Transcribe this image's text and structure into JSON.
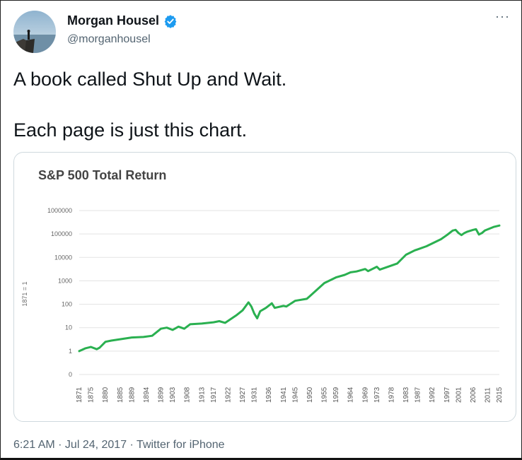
{
  "author": {
    "name": "Morgan Housel",
    "handle": "@morganhousel",
    "verified": true,
    "avatar_icon": "avatar-photo",
    "verified_icon": "verified-badge-icon",
    "more_icon": "more-options-icon",
    "verified_color": "#1d9bf0"
  },
  "tweet": {
    "lines": [
      "A book called Shut Up and Wait.",
      "Each page is just this chart."
    ]
  },
  "footer": {
    "time": "6:21 AM",
    "separator": " · ",
    "date": "Jul 24, 2017",
    "source": "Twitter for iPhone"
  },
  "chart_data": {
    "type": "line",
    "title": "S&P 500 Total Return",
    "ylabel": "1871 = 1",
    "xlabel": "",
    "yscale": "log",
    "grid": true,
    "y_ticks": [
      "1000000",
      "100000",
      "10000",
      "1000",
      "100",
      "10",
      "1",
      "0"
    ],
    "x_ticks": [
      "1871",
      "1875",
      "1880",
      "1885",
      "1889",
      "1894",
      "1899",
      "1903",
      "1908",
      "1913",
      "1917",
      "1922",
      "1927",
      "1931",
      "1936",
      "1941",
      "1945",
      "1950",
      "1955",
      "1959",
      "1964",
      "1969",
      "1973",
      "1978",
      "1983",
      "1987",
      "1992",
      "1997",
      "2001",
      "2006",
      "2011",
      "2015"
    ],
    "line_color": "#2ab050",
    "series": [
      {
        "x": [
          1871,
          1873,
          1875,
          1877,
          1878,
          1880,
          1882,
          1885,
          1889,
          1893,
          1896,
          1899,
          1901,
          1903,
          1905,
          1907,
          1909,
          1913,
          1917,
          1919,
          1921,
          1925,
          1927,
          1929,
          1930,
          1931,
          1932,
          1933,
          1935,
          1937,
          1938,
          1941,
          1942,
          1945,
          1949,
          1950,
          1955,
          1959,
          1962,
          1964,
          1966,
          1969,
          1970,
          1973,
          1974,
          1978,
          1980,
          1983,
          1986,
          1987,
          1990,
          1995,
          1997,
          1999,
          2000,
          2001,
          2002,
          2003,
          2004,
          2006,
          2007,
          2008,
          2009,
          2010,
          2013,
          2015
        ],
        "y": [
          1,
          1.3,
          1.5,
          1.2,
          1.4,
          2.5,
          2.8,
          3.2,
          3.8,
          4,
          4.5,
          9,
          10,
          8,
          11,
          9,
          14,
          15,
          17,
          19,
          16,
          35,
          55,
          120,
          80,
          40,
          25,
          50,
          70,
          110,
          70,
          85,
          80,
          140,
          170,
          220,
          800,
          1400,
          1800,
          2300,
          2500,
          3200,
          2600,
          4000,
          3000,
          4500,
          5500,
          13000,
          20000,
          22000,
          30000,
          60000,
          90000,
          140000,
          150000,
          110000,
          90000,
          110000,
          125000,
          150000,
          160000,
          95000,
          110000,
          140000,
          200000,
          230000
        ]
      }
    ]
  }
}
